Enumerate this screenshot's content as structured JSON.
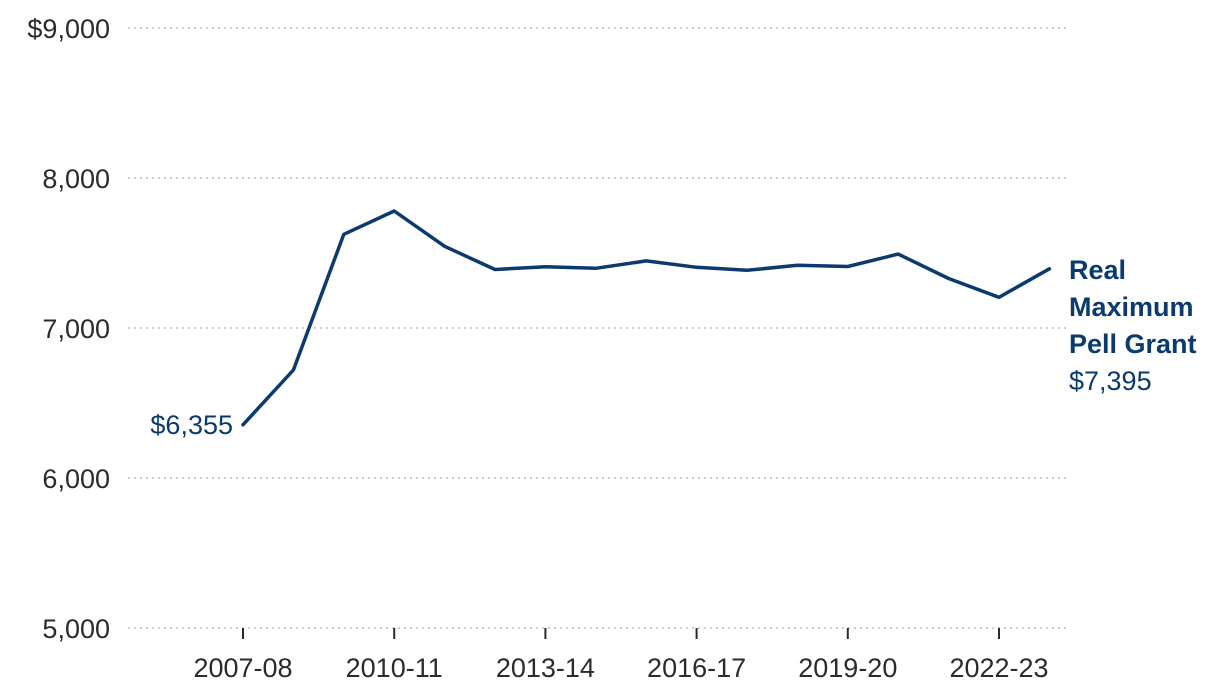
{
  "chart_data": {
    "type": "line",
    "title": "",
    "xlabel": "",
    "ylabel": "",
    "ylim": [
      5000,
      9000
    ],
    "yticks": [
      5000,
      6000,
      7000,
      8000,
      9000
    ],
    "ytick_labels": [
      "5,000",
      "6,000",
      "7,000",
      "8,000",
      "$9,000"
    ],
    "grid": true,
    "legend": "none",
    "x": [
      "2007-08",
      "2008-09",
      "2009-10",
      "2010-11",
      "2011-12",
      "2012-13",
      "2013-14",
      "2014-15",
      "2015-16",
      "2016-17",
      "2017-18",
      "2018-19",
      "2019-20",
      "2020-21",
      "2021-22",
      "2022-23",
      "2023-24"
    ],
    "xtick_labels": [
      "2007-08",
      "2010-11",
      "2013-14",
      "2016-17",
      "2019-20",
      "2022-23"
    ],
    "series": [
      {
        "name": "Real Maximum Pell Grant",
        "color": "#0b3a6e",
        "values": [
          6355,
          6720,
          7625,
          7780,
          7545,
          7390,
          7408,
          7398,
          7447,
          7405,
          7385,
          7418,
          7410,
          7493,
          7330,
          7205,
          7395
        ]
      }
    ],
    "annotations": {
      "start_value": "$6,355",
      "end_name_lines": [
        "Real",
        "Maximum",
        "Pell Grant"
      ],
      "end_value": "$7,395"
    }
  }
}
